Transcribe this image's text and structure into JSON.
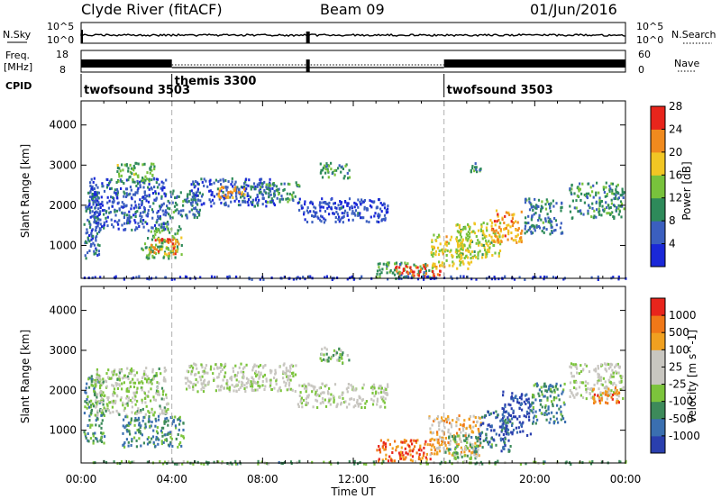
{
  "header": {
    "station": "Clyde River (fitACF)",
    "beam": "Beam 09",
    "date": "01/Jun/2016"
  },
  "aux_panels": {
    "nsky_label": "N.Sky",
    "nsky_tick_top": "10^5",
    "nsky_tick_bottom": "10^0",
    "nsearch_label": "N.Search",
    "nsearch_tick_top": "10^5",
    "nsearch_tick_bottom": "10^0",
    "freq_label_1": "Freq.",
    "freq_label_2": "[MHz]",
    "freq_tick_top": "18",
    "freq_tick_bottom": "8",
    "nave_label": "Nave",
    "nave_tick_top": "60",
    "nave_tick_bottom": "0",
    "cpid_label": "CPID"
  },
  "cpid_segments": [
    {
      "label": "twofsound 3503",
      "start_hour": 0
    },
    {
      "label": "themis 3300",
      "start_hour": 4
    },
    {
      "label": "twofsound 3503",
      "start_hour": 16
    }
  ],
  "xaxis": {
    "label": "Time UT",
    "ticks": [
      "00:00",
      "04:00",
      "08:00",
      "12:00",
      "16:00",
      "20:00",
      "00:00"
    ]
  },
  "chart_data": [
    {
      "type": "heatmap",
      "title": "Power",
      "ylabel": "Slant Range [km]",
      "yticks": [
        "1000",
        "2000",
        "3000",
        "4000"
      ],
      "ylim": [
        180,
        4600
      ],
      "xlim_hours": [
        0,
        24
      ],
      "colorbar": {
        "label": "Power [dB]",
        "ticks": [
          "4",
          "8",
          "12",
          "16",
          "20",
          "24",
          "28"
        ],
        "colors": [
          "#1a28d8",
          "#3b5fbf",
          "#2e8a5a",
          "#78c23c",
          "#f1c624",
          "#f08a1e",
          "#e8251c"
        ]
      },
      "regions": [
        {
          "h0": 0.1,
          "h1": 0.8,
          "r0": 700,
          "r1": 2400,
          "level": 0.25
        },
        {
          "h0": 0.3,
          "h1": 3.8,
          "r0": 1400,
          "r1": 2700,
          "level": 0.2
        },
        {
          "h0": 1.5,
          "h1": 3.2,
          "r0": 2600,
          "r1": 3100,
          "level": 0.45
        },
        {
          "h0": 2.6,
          "h1": 4.4,
          "r0": 700,
          "r1": 1500,
          "level": 0.45
        },
        {
          "h0": 3.0,
          "h1": 4.3,
          "r0": 800,
          "r1": 1200,
          "level": 0.8
        },
        {
          "h0": 3.8,
          "h1": 5.2,
          "r0": 1700,
          "r1": 2400,
          "level": 0.3
        },
        {
          "h0": 4.8,
          "h1": 8.5,
          "r0": 2000,
          "r1": 2700,
          "level": 0.2
        },
        {
          "h0": 6.0,
          "h1": 7.2,
          "r0": 2200,
          "r1": 2500,
          "level": 0.7
        },
        {
          "h0": 7.8,
          "h1": 9.6,
          "r0": 2100,
          "r1": 2600,
          "level": 0.35
        },
        {
          "h0": 9.5,
          "h1": 13.5,
          "r0": 1600,
          "r1": 2200,
          "level": 0.15
        },
        {
          "h0": 10.5,
          "h1": 11.8,
          "r0": 2700,
          "r1": 3100,
          "level": 0.4
        },
        {
          "h0": 13.0,
          "h1": 15.5,
          "r0": 200,
          "r1": 600,
          "level": 0.4
        },
        {
          "h0": 13.8,
          "h1": 15.8,
          "r0": 250,
          "r1": 550,
          "level": 0.92
        },
        {
          "h0": 15.4,
          "h1": 17.2,
          "r0": 450,
          "r1": 1300,
          "level": 0.6
        },
        {
          "h0": 16.5,
          "h1": 18.5,
          "r0": 700,
          "r1": 1600,
          "level": 0.55
        },
        {
          "h0": 18.0,
          "h1": 19.4,
          "r0": 1100,
          "r1": 1900,
          "level": 0.75
        },
        {
          "h0": 19.5,
          "h1": 21.2,
          "r0": 1300,
          "r1": 2200,
          "level": 0.3
        },
        {
          "h0": 21.5,
          "h1": 23.9,
          "r0": 1700,
          "r1": 2600,
          "level": 0.35
        },
        {
          "h0": 17.0,
          "h1": 17.6,
          "r0": 2800,
          "r1": 3100,
          "level": 0.35
        },
        {
          "h0": 0.0,
          "h1": 24.0,
          "r0": 180,
          "r1": 260,
          "level": 0.1
        }
      ]
    },
    {
      "type": "heatmap",
      "title": "Velocity",
      "ylabel": "Slant Range [km]",
      "yticks": [
        "1000",
        "2000",
        "3000",
        "4000"
      ],
      "ylim": [
        180,
        4600
      ],
      "xlim_hours": [
        0,
        24
      ],
      "colorbar": {
        "label": "Velocity [m s^-1]",
        "ticks": [
          "1000",
          "500",
          "100",
          "25",
          "-25",
          "-100",
          "-500",
          "-1000"
        ],
        "colors": [
          "#2a3fae",
          "#3a6fb0",
          "#3d8a5a",
          "#7cc43c",
          "#c8c6c0",
          "#c8c6c0",
          "#f0a020",
          "#f07818",
          "#e8251c"
        ]
      },
      "regions": [
        {
          "h0": 0.1,
          "h1": 1.0,
          "r0": 700,
          "r1": 2400,
          "level": 0.3
        },
        {
          "h0": 0.5,
          "h1": 3.8,
          "r0": 1400,
          "r1": 2600,
          "level": 0.45
        },
        {
          "h0": 1.8,
          "h1": 4.5,
          "r0": 600,
          "r1": 1400,
          "level": 0.25
        },
        {
          "h0": 4.5,
          "h1": 9.5,
          "r0": 2000,
          "r1": 2700,
          "level": 0.5
        },
        {
          "h0": 9.5,
          "h1": 13.5,
          "r0": 1600,
          "r1": 2200,
          "level": 0.5
        },
        {
          "h0": 10.5,
          "h1": 11.8,
          "r0": 2700,
          "r1": 3100,
          "level": 0.4
        },
        {
          "h0": 13.0,
          "h1": 15.5,
          "r0": 250,
          "r1": 800,
          "level": 0.85
        },
        {
          "h0": 15.3,
          "h1": 17.6,
          "r0": 400,
          "r1": 1400,
          "level": 0.7
        },
        {
          "h0": 16.0,
          "h1": 17.5,
          "r0": 300,
          "r1": 900,
          "level": 0.35
        },
        {
          "h0": 17.5,
          "h1": 19.0,
          "r0": 500,
          "r1": 1500,
          "level": 0.2
        },
        {
          "h0": 18.5,
          "h1": 19.8,
          "r0": 900,
          "r1": 2000,
          "level": 0.05
        },
        {
          "h0": 19.8,
          "h1": 21.3,
          "r0": 1200,
          "r1": 2200,
          "level": 0.25
        },
        {
          "h0": 21.5,
          "h1": 23.9,
          "r0": 1800,
          "r1": 2700,
          "level": 0.5
        },
        {
          "h0": 22.5,
          "h1": 23.8,
          "r0": 1700,
          "r1": 2100,
          "level": 0.8
        },
        {
          "h0": 0.0,
          "h1": 24.0,
          "r0": 180,
          "r1": 260,
          "level": 0.35
        }
      ]
    }
  ]
}
